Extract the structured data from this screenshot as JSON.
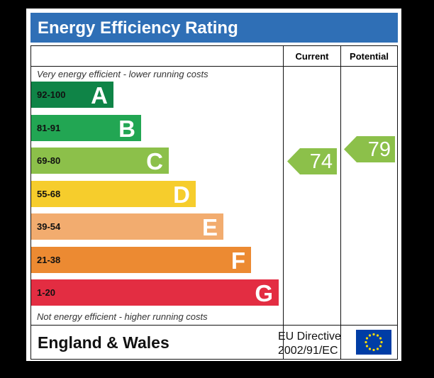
{
  "title": "Energy Efficiency Rating",
  "columns": {
    "current": "Current",
    "potential": "Potential"
  },
  "top_note": "Very energy efficient - lower running costs",
  "bottom_note": "Not energy efficient - higher running costs",
  "bands": [
    {
      "range": "92-100",
      "letter": "A",
      "color": "#0f8447"
    },
    {
      "range": "81-91",
      "letter": "B",
      "color": "#22a653"
    },
    {
      "range": "69-80",
      "letter": "C",
      "color": "#8cc04a"
    },
    {
      "range": "55-68",
      "letter": "D",
      "color": "#f6cd2c"
    },
    {
      "range": "39-54",
      "letter": "E",
      "color": "#f2ac6f"
    },
    {
      "range": "21-38",
      "letter": "F",
      "color": "#ec8a32"
    },
    {
      "range": "1-20",
      "letter": "G",
      "color": "#e32d42"
    }
  ],
  "current": {
    "value": "74",
    "color": "#8cc04a"
  },
  "potential": {
    "value": "79",
    "color": "#8cc04a"
  },
  "footer": {
    "region": "England & Wales",
    "directive_line1": "EU Directive",
    "directive_line2": "2002/91/EC"
  },
  "flag_color": "#003da5",
  "star_color": "#ffdd00"
}
